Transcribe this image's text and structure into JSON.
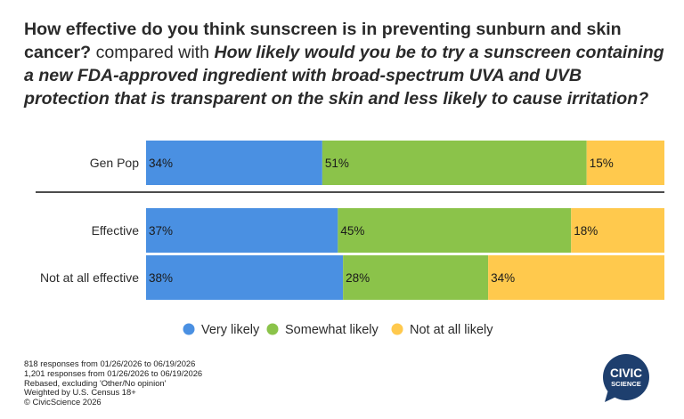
{
  "title": {
    "bold_part": "How effective do you think sunscreen is in preventing sunburn and skin cancer?",
    "plain_part": "compared with",
    "italic_part": "How likely would you be to try a sunscreen containing a new FDA-approved ingredient with broad-spectrum UVA and UVB protection that is transparent on the skin and less likely to cause irritation?"
  },
  "chart_data": {
    "type": "bar",
    "orientation": "horizontal",
    "stacked": true,
    "percent_stacked": true,
    "categories": [
      "Gen Pop",
      "Effective",
      "Not at all effective"
    ],
    "series": [
      {
        "name": "Very likely",
        "color": "#4a90e2",
        "values": [
          34,
          37,
          38
        ],
        "labels": [
          "34%",
          "37%",
          "38%"
        ]
      },
      {
        "name": "Somewhat likely",
        "color": "#8bc34a",
        "values": [
          51,
          45,
          28
        ],
        "labels": [
          "51%",
          "45%",
          "28%"
        ]
      },
      {
        "name": "Not at all likely",
        "color": "#ffc94d",
        "values": [
          15,
          18,
          34
        ],
        "labels": [
          "15%",
          "18%",
          "34%"
        ]
      }
    ],
    "xlim": [
      0,
      100
    ],
    "grid": false,
    "separator_after_category": "Gen Pop",
    "legend_position": "bottom"
  },
  "footnotes": [
    "818 responses from 01/26/2026 to 06/19/2026",
    "1,201 responses from 01/26/2026 to 06/19/2026",
    "Rebased, excluding 'Other/No opinion'",
    "Weighted by U.S. Census 18+",
    "© CivicScience 2026"
  ],
  "logo": {
    "line1": "CIVIC",
    "line2": "SCIENCE",
    "color": "#1e3f6e"
  }
}
